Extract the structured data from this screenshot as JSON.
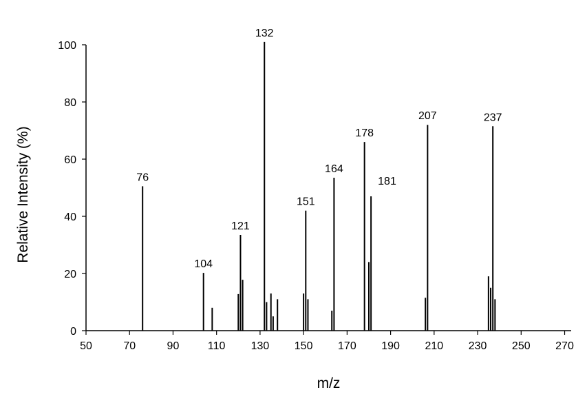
{
  "chart_data": {
    "type": "bar",
    "xlabel": "m/z",
    "ylabel": "Relative Intensity (%)",
    "xlim": [
      50,
      273
    ],
    "ylim": [
      0,
      100
    ],
    "x_ticks": [
      50,
      70,
      90,
      110,
      130,
      150,
      170,
      190,
      210,
      230,
      250,
      270
    ],
    "y_ticks": [
      0,
      20,
      40,
      60,
      80,
      100
    ],
    "grid": false,
    "legend": "none",
    "peaks": [
      {
        "mz": 76,
        "intensity": 50.5
      },
      {
        "mz": 104,
        "intensity": 20.2
      },
      {
        "mz": 108,
        "intensity": 8
      },
      {
        "mz": 120,
        "intensity": 12.8
      },
      {
        "mz": 121,
        "intensity": 33.5
      },
      {
        "mz": 122,
        "intensity": 17.8
      },
      {
        "mz": 132,
        "intensity": 101
      },
      {
        "mz": 133,
        "intensity": 10
      },
      {
        "mz": 135,
        "intensity": 13
      },
      {
        "mz": 136,
        "intensity": 5
      },
      {
        "mz": 138,
        "intensity": 11
      },
      {
        "mz": 150,
        "intensity": 13
      },
      {
        "mz": 151,
        "intensity": 42
      },
      {
        "mz": 152,
        "intensity": 11
      },
      {
        "mz": 163,
        "intensity": 7
      },
      {
        "mz": 164,
        "intensity": 53.5
      },
      {
        "mz": 178,
        "intensity": 66
      },
      {
        "mz": 180,
        "intensity": 24
      },
      {
        "mz": 181,
        "intensity": 47
      },
      {
        "mz": 206,
        "intensity": 11.5
      },
      {
        "mz": 207,
        "intensity": 72
      },
      {
        "mz": 235,
        "intensity": 19
      },
      {
        "mz": 236,
        "intensity": 15
      },
      {
        "mz": 237,
        "intensity": 71.5
      },
      {
        "mz": 238,
        "intensity": 11
      }
    ],
    "annotations": [
      {
        "text": "76",
        "mz": 76,
        "intensity": 50.5
      },
      {
        "text": "104",
        "mz": 104,
        "intensity": 20.2
      },
      {
        "text": "121",
        "mz": 121,
        "intensity": 33.5
      },
      {
        "text": "132",
        "mz": 132,
        "intensity": 101
      },
      {
        "text": "151",
        "mz": 151,
        "intensity": 42
      },
      {
        "text": "164",
        "mz": 164,
        "intensity": 53.5
      },
      {
        "text": "178",
        "mz": 178,
        "intensity": 66
      },
      {
        "text": "181",
        "mz": 181,
        "intensity": 47
      },
      {
        "text": "207",
        "mz": 207,
        "intensity": 72
      },
      {
        "text": "237",
        "mz": 237,
        "intensity": 71.5
      }
    ]
  }
}
